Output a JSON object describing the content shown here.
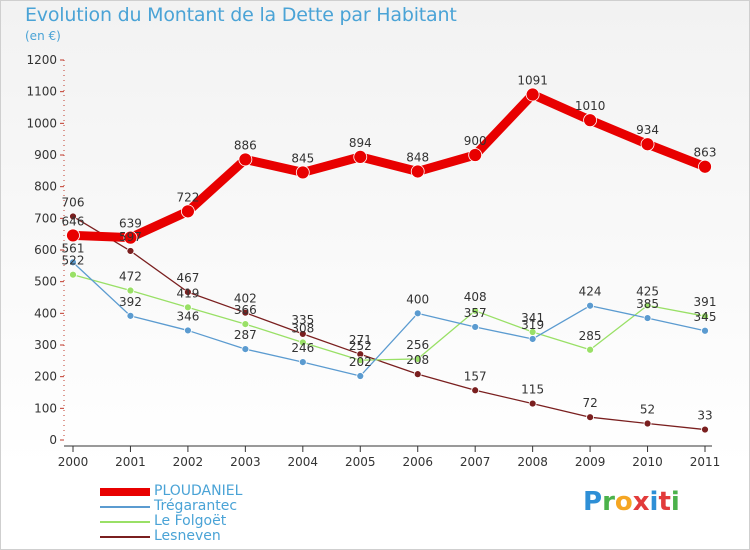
{
  "header": {
    "title": "Evolution du Montant de la Dette par Habitant",
    "unit": "(en €)"
  },
  "brand": {
    "text": "Proxiti",
    "letter_colors": [
      "#2e8fd6",
      "#4bb24b",
      "#f5a623",
      "#e23b3b",
      "#2e8fd6",
      "#e23b3b",
      "#4bb24b"
    ]
  },
  "chart_data": {
    "type": "line",
    "x": [
      "2000",
      "2001",
      "2002",
      "2003",
      "2004",
      "2005",
      "2006",
      "2007",
      "2008",
      "2009",
      "2010",
      "2011"
    ],
    "ylim": [
      0,
      1200
    ],
    "yticks": [
      0,
      100,
      200,
      300,
      400,
      500,
      600,
      700,
      800,
      900,
      1000,
      1100,
      1200
    ],
    "grid": false,
    "legend_position": "bottom-left",
    "series": [
      {
        "name": "Lesneven",
        "color": "#7a1f1f",
        "values": [
          706,
          597,
          467,
          402,
          335,
          271,
          208,
          157,
          115,
          72,
          52,
          33
        ],
        "labels": [
          "706",
          "597",
          "467",
          "402",
          "335",
          "271",
          "208",
          "157",
          "115",
          "72",
          "52",
          "33"
        ]
      },
      {
        "name": "Le Folgoët",
        "color": "#99e066",
        "values": [
          522,
          472,
          419,
          366,
          308,
          252,
          256,
          408,
          341,
          285,
          425,
          391
        ],
        "labels": [
          "522",
          "472",
          "419",
          "366",
          "308",
          "252",
          "256",
          "408",
          "341",
          "285",
          "425",
          "391"
        ]
      },
      {
        "name": "Trégarantec",
        "color": "#5b9bd0",
        "values": [
          561,
          392,
          346,
          287,
          246,
          202,
          400,
          357,
          319,
          424,
          385,
          345
        ],
        "labels": [
          "561",
          "392",
          "346",
          "287",
          "246",
          "202",
          "400",
          "357",
          "319",
          "424",
          "385",
          "345"
        ]
      },
      {
        "name": "PLOUDANIEL",
        "color": "#e80000",
        "values": [
          646,
          639,
          722,
          886,
          845,
          894,
          848,
          900,
          1091,
          1010,
          934,
          863
        ],
        "labels": [
          "646",
          "639",
          "722",
          "886",
          "845",
          "894",
          "848",
          "900",
          "1091",
          "1010",
          "934",
          "863"
        ]
      }
    ],
    "legend": [
      "PLOUDANIEL",
      "Trégarantec",
      "Le Folgoët",
      "Lesneven"
    ]
  }
}
